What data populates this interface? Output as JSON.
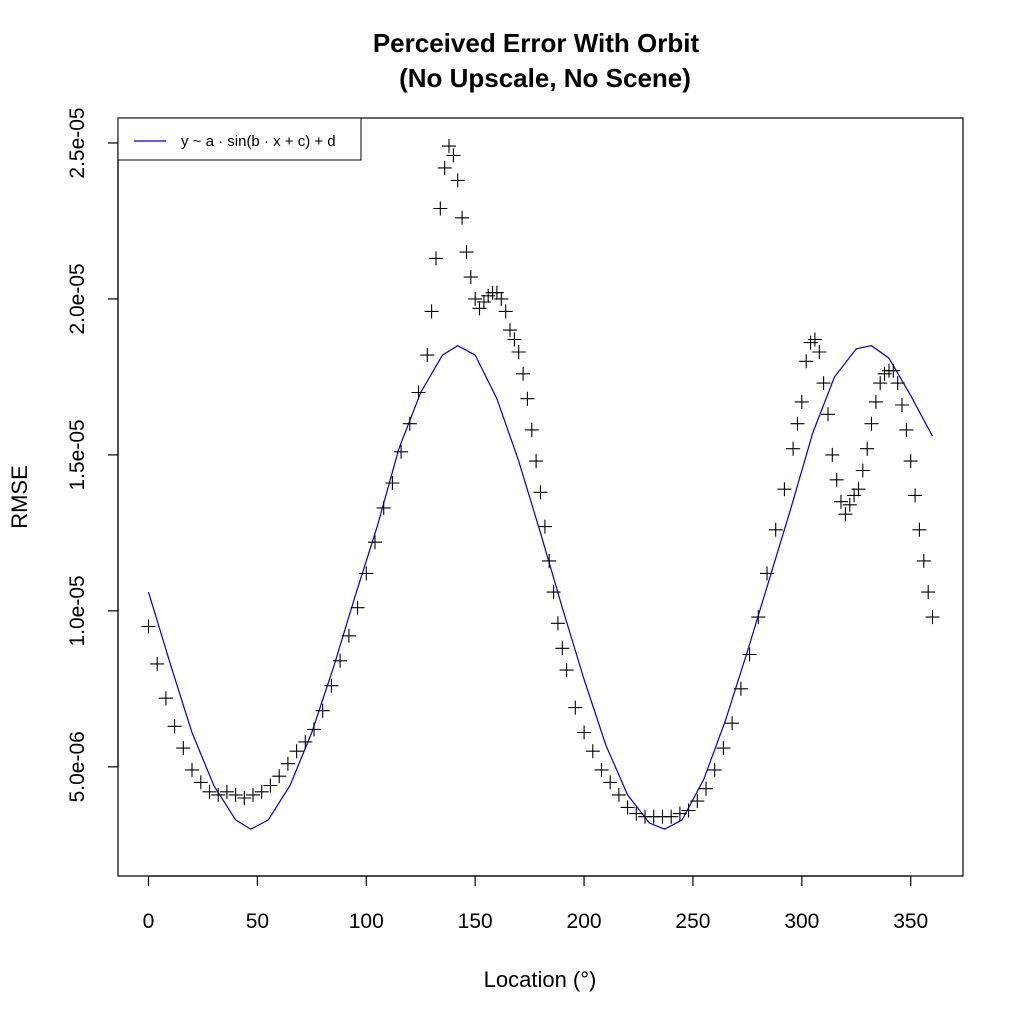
{
  "chart_data": {
    "type": "scatter",
    "title_line1": "Perceived Error With Orbit",
    "title_line2": "(No Upscale, No Scene)",
    "xlabel": "Location (°)",
    "ylabel": "RMSE",
    "xlim": [
      -14,
      374
    ],
    "ylim": [
      1.5e-06,
      2.58e-05
    ],
    "x_ticks": [
      0,
      50,
      100,
      150,
      200,
      250,
      300,
      350
    ],
    "x_tick_labels": [
      "0",
      "50",
      "100",
      "150",
      "200",
      "250",
      "300",
      "350"
    ],
    "y_ticks": [
      5e-06,
      1e-05,
      1.5e-05,
      2e-05,
      2.5e-05
    ],
    "y_tick_labels": [
      "5.0e-06",
      "1.0e-05",
      "1.5e-05",
      "2.0e-05",
      "2.5e-05"
    ],
    "grid": false,
    "legend_position": "top-left",
    "legend_entry": "y ~ a · sin(b · x + c) + d",
    "fit_color": "#0000cc",
    "point_color": "#000000",
    "marker": "plus",
    "observed": {
      "x": [
        0,
        4,
        8,
        12,
        16,
        20,
        24,
        28,
        32,
        36,
        40,
        44,
        48,
        52,
        56,
        60,
        64,
        68,
        72,
        76,
        80,
        84,
        88,
        92,
        96,
        100,
        104,
        108,
        112,
        116,
        120,
        124,
        128,
        130,
        132,
        134,
        136,
        138,
        140,
        142,
        144,
        146,
        148,
        150,
        152,
        154,
        156,
        158,
        160,
        162,
        164,
        166,
        168,
        170,
        172,
        174,
        176,
        178,
        180,
        182,
        184,
        186,
        188,
        190,
        192,
        196,
        200,
        204,
        208,
        212,
        216,
        220,
        224,
        228,
        232,
        236,
        240,
        244,
        248,
        252,
        256,
        260,
        264,
        268,
        272,
        276,
        280,
        284,
        288,
        292,
        296,
        298,
        300,
        302,
        304,
        306,
        308,
        310,
        312,
        314,
        316,
        318,
        320,
        322,
        324,
        326,
        328,
        330,
        332,
        334,
        336,
        338,
        340,
        342,
        344,
        346,
        348,
        350,
        352,
        354,
        356,
        358,
        360
      ],
      "y": [
        9.5e-06,
        8.3e-06,
        7.2e-06,
        6.3e-06,
        5.6e-06,
        4.9e-06,
        4.5e-06,
        4.2e-06,
        4.1e-06,
        4.2e-06,
        4.1e-06,
        4e-06,
        4.1e-06,
        4.2e-06,
        4.4e-06,
        4.7e-06,
        5.1e-06,
        5.5e-06,
        5.8e-06,
        6.2e-06,
        6.8e-06,
        7.6e-06,
        8.4e-06,
        9.2e-06,
        1.01e-05,
        1.12e-05,
        1.22e-05,
        1.33e-05,
        1.41e-05,
        1.51e-05,
        1.6e-05,
        1.7e-05,
        1.82e-05,
        1.96e-05,
        2.13e-05,
        2.29e-05,
        2.42e-05,
        2.49e-05,
        2.46e-05,
        2.38e-05,
        2.26e-05,
        2.15e-05,
        2.07e-05,
        2e-05,
        1.97e-05,
        1.99e-05,
        2.01e-05,
        2.02e-05,
        2.02e-05,
        2e-05,
        1.96e-05,
        1.9e-05,
        1.87e-05,
        1.83e-05,
        1.76e-05,
        1.68e-05,
        1.58e-05,
        1.48e-05,
        1.38e-05,
        1.27e-05,
        1.16e-05,
        1.06e-05,
        9.6e-06,
        8.8e-06,
        8.1e-06,
        6.9e-06,
        6.1e-06,
        5.5e-06,
        4.9e-06,
        4.5e-06,
        4.1e-06,
        3.7e-06,
        3.5e-06,
        3.4e-06,
        3.4e-06,
        3.4e-06,
        3.4e-06,
        3.5e-06,
        3.6e-06,
        3.9e-06,
        4.3e-06,
        4.9e-06,
        5.6e-06,
        6.4e-06,
        7.5e-06,
        8.6e-06,
        9.8e-06,
        1.12e-05,
        1.26e-05,
        1.39e-05,
        1.52e-05,
        1.6e-05,
        1.67e-05,
        1.8e-05,
        1.86e-05,
        1.87e-05,
        1.83e-05,
        1.73e-05,
        1.63e-05,
        1.5e-05,
        1.42e-05,
        1.35e-05,
        1.31e-05,
        1.34e-05,
        1.37e-05,
        1.39e-05,
        1.45e-05,
        1.52e-05,
        1.6e-05,
        1.67e-05,
        1.73e-05,
        1.76e-05,
        1.77e-05,
        1.77e-05,
        1.73e-05,
        1.66e-05,
        1.58e-05,
        1.48e-05,
        1.37e-05,
        1.26e-05,
        1.16e-05,
        1.06e-05,
        9.8e-06
      ]
    },
    "fit": {
      "x": [
        0,
        10,
        20,
        30,
        40,
        47,
        55,
        65,
        75,
        85,
        95,
        105,
        115,
        125,
        135,
        142,
        150,
        160,
        170,
        180,
        190,
        200,
        210,
        220,
        230,
        237,
        245,
        255,
        265,
        275,
        285,
        295,
        305,
        315,
        325,
        332,
        340,
        350,
        360
      ],
      "y": [
        1.06e-05,
        8.3e-06,
        6.1e-06,
        4.4e-06,
        3.3e-06,
        3e-06,
        3.3e-06,
        4.4e-06,
        6.1e-06,
        8.2e-06,
        1.05e-05,
        1.27e-05,
        1.52e-05,
        1.7e-05,
        1.82e-05,
        1.85e-05,
        1.82e-05,
        1.68e-05,
        1.48e-05,
        1.25e-05,
        1.01e-05,
        7.8e-06,
        5.7e-06,
        4.1e-06,
        3.2e-06,
        3e-06,
        3.3e-06,
        4.6e-06,
        6.5e-06,
        8.7e-06,
        1.1e-05,
        1.33e-05,
        1.57e-05,
        1.75e-05,
        1.84e-05,
        1.85e-05,
        1.81e-05,
        1.69e-05,
        1.56e-05
      ]
    }
  }
}
